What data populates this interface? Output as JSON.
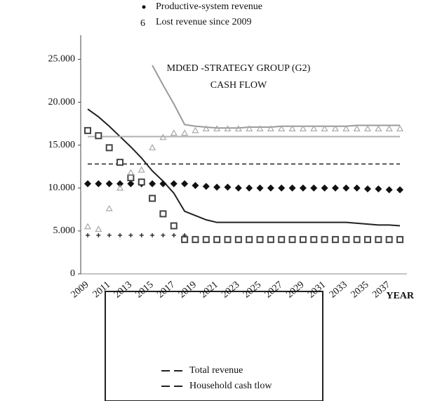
{
  "chart_data": {
    "type": "line",
    "title": "MDŒD -STRATEGY GROUP (G2)",
    "subtitle": "CASH FLOW",
    "x_label": "YEAR",
    "top_legend": [
      "Productive-system revenue",
      "Lost revenue since 2009"
    ],
    "categories": [
      "2009",
      null,
      "2011",
      null,
      "2013",
      null,
      "2015",
      null,
      "2017",
      null,
      "2019",
      null,
      "2021",
      null,
      "2023",
      null,
      "2025",
      null,
      "2027",
      null,
      "2029",
      null,
      "2031",
      null,
      "2033",
      null,
      "2035",
      null,
      "2037",
      null
    ],
    "ylim": [
      0,
      27000
    ],
    "yticks": [
      0,
      {
        "value": 5000,
        "label": "5.000"
      },
      {
        "value": 10000,
        "label": "10.000"
      },
      {
        "value": 15000,
        "label": "15.000"
      },
      {
        "value": 20000,
        "label": "20.000"
      },
      {
        "value": 25000,
        "label": "25.000"
      }
    ],
    "series": [
      {
        "name": "Total revenue",
        "color": "#222222",
        "style": "line",
        "dash": false,
        "values": [
          19200,
          18300,
          17200,
          16000,
          14800,
          13500,
          12000,
          10800,
          9400,
          7300,
          6800,
          6300,
          6000,
          6000,
          6000,
          6000,
          6000,
          6000,
          6000,
          6000,
          6000,
          6000,
          6000,
          6000,
          6000,
          5900,
          5800,
          5700,
          5700,
          5600
        ]
      },
      {
        "name": "Household cash tlow",
        "color": "#222222",
        "style": "line",
        "dash": true,
        "values": [
          12800,
          12800,
          12800,
          12800,
          12800,
          12800,
          12800,
          12800,
          12800,
          12800,
          12800,
          12800,
          12800,
          12800,
          12800,
          12800,
          12800,
          12800,
          12800,
          12800,
          12800,
          12800,
          12800,
          12800,
          12800,
          12800,
          12800,
          12800,
          12800,
          12800
        ]
      },
      {
        "color": "#9a9a9a",
        "style": "line",
        "dash": false,
        "values": [
          null,
          null,
          null,
          null,
          null,
          null,
          24300,
          22000,
          19800,
          17400,
          17200,
          17100,
          17000,
          17000,
          17000,
          17100,
          17100,
          17100,
          17200,
          17200,
          17200,
          17200,
          17200,
          17200,
          17200,
          17300,
          17300,
          17300,
          17300,
          17300
        ]
      },
      {
        "color": "#b0b0b0",
        "style": "line",
        "dash": false,
        "values": [
          16000,
          16000,
          16000,
          16000,
          16000,
          16000,
          16000,
          16000,
          16000,
          16000,
          16000,
          16000,
          16000,
          16000,
          16000,
          16000,
          16000,
          16000,
          16000,
          16000,
          16000,
          16000,
          16000,
          16000,
          16000,
          16000,
          16000,
          16000,
          16000,
          16000
        ]
      },
      {
        "color": "#111111",
        "style": "marker",
        "marker": "diamond",
        "values": [
          10500,
          10500,
          10500,
          10500,
          10500,
          10500,
          10500,
          10500,
          10500,
          10500,
          10300,
          10200,
          10100,
          10100,
          10000,
          10000,
          10000,
          10000,
          10000,
          10000,
          10000,
          10000,
          10000,
          10000,
          10000,
          10000,
          9900,
          9900,
          9800,
          9800
        ]
      },
      {
        "color": "#444444",
        "style": "marker",
        "marker": "square",
        "values": [
          16700,
          16100,
          14700,
          13000,
          11200,
          10700,
          8800,
          7000,
          5600,
          4000,
          4000,
          4000,
          4000,
          4000,
          4000,
          4000,
          4000,
          4000,
          4000,
          4000,
          4000,
          4000,
          4000,
          4000,
          4000,
          4000,
          4000,
          4000,
          4000,
          4000
        ]
      },
      {
        "color": "#a8a8a8",
        "style": "marker",
        "marker": "triangle",
        "values": [
          5500,
          5200,
          7600,
          10000,
          11800,
          12100,
          14700,
          15900,
          16400,
          16400,
          16700,
          16900,
          16900,
          16900,
          16900,
          16900,
          16900,
          16900,
          16900,
          16900,
          16900,
          16900,
          16900,
          16900,
          16900,
          16900,
          16900,
          16900,
          16900,
          16900
        ]
      },
      {
        "color": "#333333",
        "style": "marker",
        "marker": "plus",
        "values": [
          4500,
          4500,
          4500,
          4500,
          4500,
          4500,
          4500,
          4500,
          4500,
          4500,
          null,
          null,
          null,
          null,
          null,
          null,
          null,
          null,
          null,
          null,
          null,
          null,
          null,
          null,
          null,
          null,
          null,
          null,
          null,
          null
        ]
      }
    ]
  }
}
